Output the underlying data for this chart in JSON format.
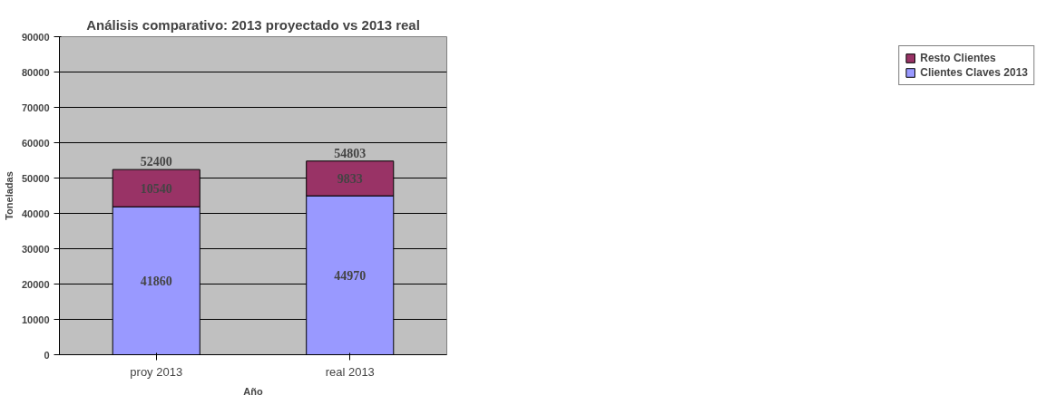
{
  "chart_data": {
    "type": "bar",
    "title": "Análisis comparativo: 2013 proyectado vs 2013 real",
    "xlabel": "Año",
    "ylabel": "Toneladas",
    "categories": [
      "proy 2013",
      "real 2013"
    ],
    "stacked": true,
    "series": [
      {
        "name": "Clientes Claves 2013",
        "color": "#9999ff",
        "values": [
          41860,
          44970
        ]
      },
      {
        "name": "Resto Clientes",
        "color": "#993366",
        "values": [
          10540,
          9833
        ]
      }
    ],
    "totals": [
      "52400",
      "54803"
    ],
    "ylim": [
      0,
      90000
    ],
    "yticks": [
      0,
      10000,
      20000,
      30000,
      40000,
      50000,
      60000,
      70000,
      80000,
      90000
    ],
    "grid": "y",
    "legend": "right",
    "data_labels": true
  }
}
